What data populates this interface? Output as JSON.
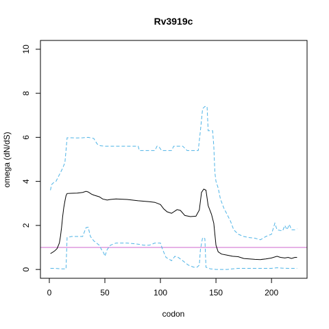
{
  "chart_data": {
    "type": "line",
    "title": "Rv3919c",
    "xlabel": "codon",
    "ylabel": "omega (dN/dS)",
    "xlim": [
      -8,
      232
    ],
    "ylim": [
      -0.4,
      10.4
    ],
    "xticks": [
      0,
      50,
      100,
      150,
      200
    ],
    "yticks": [
      0,
      2,
      4,
      6,
      8,
      10
    ],
    "grid": false,
    "reference_line": {
      "y": 1,
      "color": "#cc66cc"
    },
    "series": [
      {
        "role": "estimate",
        "color": "#000000",
        "dash": "solid",
        "points": [
          [
            1,
            0.72
          ],
          [
            3,
            0.78
          ],
          [
            5,
            0.85
          ],
          [
            7,
            0.95
          ],
          [
            9,
            1.2
          ],
          [
            10,
            1.5
          ],
          [
            11,
            1.9
          ],
          [
            12,
            2.4
          ],
          [
            13,
            2.8
          ],
          [
            14,
            3.1
          ],
          [
            15,
            3.35
          ],
          [
            16,
            3.45
          ],
          [
            20,
            3.46
          ],
          [
            25,
            3.47
          ],
          [
            30,
            3.5
          ],
          [
            33,
            3.55
          ],
          [
            35,
            3.52
          ],
          [
            38,
            3.42
          ],
          [
            40,
            3.38
          ],
          [
            45,
            3.3
          ],
          [
            48,
            3.2
          ],
          [
            52,
            3.15
          ],
          [
            55,
            3.18
          ],
          [
            60,
            3.2
          ],
          [
            70,
            3.18
          ],
          [
            80,
            3.12
          ],
          [
            90,
            3.08
          ],
          [
            95,
            3.05
          ],
          [
            100,
            2.95
          ],
          [
            103,
            2.75
          ],
          [
            106,
            2.62
          ],
          [
            110,
            2.55
          ],
          [
            115,
            2.72
          ],
          [
            118,
            2.68
          ],
          [
            122,
            2.45
          ],
          [
            127,
            2.4
          ],
          [
            132,
            2.42
          ],
          [
            135,
            2.7
          ],
          [
            137,
            3.5
          ],
          [
            139,
            3.65
          ],
          [
            141,
            3.6
          ],
          [
            143,
            2.9
          ],
          [
            146,
            2.5
          ],
          [
            148,
            2.1
          ],
          [
            150,
            1.1
          ],
          [
            152,
            0.8
          ],
          [
            155,
            0.7
          ],
          [
            160,
            0.65
          ],
          [
            165,
            0.6
          ],
          [
            170,
            0.58
          ],
          [
            175,
            0.5
          ],
          [
            180,
            0.48
          ],
          [
            185,
            0.46
          ],
          [
            190,
            0.45
          ],
          [
            195,
            0.48
          ],
          [
            200,
            0.52
          ],
          [
            205,
            0.6
          ],
          [
            208,
            0.55
          ],
          [
            212,
            0.52
          ],
          [
            215,
            0.55
          ],
          [
            218,
            0.5
          ],
          [
            221,
            0.55
          ],
          [
            223,
            0.55
          ]
        ]
      },
      {
        "role": "upper",
        "color": "#4db3e6",
        "dash": "dashed",
        "points": [
          [
            1,
            3.6
          ],
          [
            2,
            3.85
          ],
          [
            4,
            3.95
          ],
          [
            6,
            4.0
          ],
          [
            8,
            4.2
          ],
          [
            10,
            4.4
          ],
          [
            12,
            4.6
          ],
          [
            14,
            4.85
          ],
          [
            15,
            5.4
          ],
          [
            16,
            5.98
          ],
          [
            20,
            5.98
          ],
          [
            25,
            5.97
          ],
          [
            30,
            5.98
          ],
          [
            35,
            6.0
          ],
          [
            40,
            5.95
          ],
          [
            43,
            5.7
          ],
          [
            46,
            5.62
          ],
          [
            50,
            5.6
          ],
          [
            60,
            5.6
          ],
          [
            70,
            5.6
          ],
          [
            80,
            5.6
          ],
          [
            81,
            5.4
          ],
          [
            90,
            5.4
          ],
          [
            95,
            5.4
          ],
          [
            97,
            5.6
          ],
          [
            99,
            5.55
          ],
          [
            101,
            5.4
          ],
          [
            110,
            5.4
          ],
          [
            112,
            5.6
          ],
          [
            120,
            5.6
          ],
          [
            124,
            5.4
          ],
          [
            130,
            5.4
          ],
          [
            134,
            5.4
          ],
          [
            136,
            6.3
          ],
          [
            138,
            7.3
          ],
          [
            140,
            7.4
          ],
          [
            142,
            7.4
          ],
          [
            143,
            6.3
          ],
          [
            147,
            6.3
          ],
          [
            148,
            5.6
          ],
          [
            149,
            4.4
          ],
          [
            150,
            4.0
          ],
          [
            152,
            3.7
          ],
          [
            154,
            3.2
          ],
          [
            157,
            2.8
          ],
          [
            160,
            2.5
          ],
          [
            163,
            2.2
          ],
          [
            166,
            1.8
          ],
          [
            170,
            1.6
          ],
          [
            175,
            1.5
          ],
          [
            180,
            1.45
          ],
          [
            185,
            1.42
          ],
          [
            190,
            1.35
          ],
          [
            195,
            1.5
          ],
          [
            200,
            1.6
          ],
          [
            203,
            2.1
          ],
          [
            205,
            1.8
          ],
          [
            210,
            1.75
          ],
          [
            212,
            2.0
          ],
          [
            214,
            1.8
          ],
          [
            216,
            2.05
          ],
          [
            218,
            1.8
          ],
          [
            221,
            1.8
          ],
          [
            223,
            1.85
          ]
        ]
      },
      {
        "role": "lower",
        "color": "#4db3e6",
        "dash": "dashed",
        "points": [
          [
            1,
            0.05
          ],
          [
            5,
            0.05
          ],
          [
            10,
            0.03
          ],
          [
            14,
            0.03
          ],
          [
            15,
            0.02
          ],
          [
            16,
            1.45
          ],
          [
            20,
            1.5
          ],
          [
            25,
            1.5
          ],
          [
            30,
            1.5
          ],
          [
            33,
            1.9
          ],
          [
            35,
            1.92
          ],
          [
            37,
            1.5
          ],
          [
            40,
            1.3
          ],
          [
            45,
            1.1
          ],
          [
            47,
            0.9
          ],
          [
            49,
            0.75
          ],
          [
            50,
            0.6
          ],
          [
            52,
            0.9
          ],
          [
            55,
            1.1
          ],
          [
            60,
            1.2
          ],
          [
            70,
            1.2
          ],
          [
            80,
            1.15
          ],
          [
            85,
            1.1
          ],
          [
            90,
            1.1
          ],
          [
            95,
            1.2
          ],
          [
            100,
            1.2
          ],
          [
            102,
            0.9
          ],
          [
            105,
            0.55
          ],
          [
            110,
            0.4
          ],
          [
            113,
            0.6
          ],
          [
            116,
            0.55
          ],
          [
            120,
            0.4
          ],
          [
            125,
            0.2
          ],
          [
            130,
            0.1
          ],
          [
            133,
            0.1
          ],
          [
            135,
            0.2
          ],
          [
            136,
            0.9
          ],
          [
            138,
            1.45
          ],
          [
            140,
            1.4
          ],
          [
            141,
            0.1
          ],
          [
            145,
            0.03
          ],
          [
            150,
            0.0
          ],
          [
            160,
            0.0
          ],
          [
            170,
            0.05
          ],
          [
            180,
            0.05
          ],
          [
            190,
            0.05
          ],
          [
            200,
            0.05
          ],
          [
            205,
            0.08
          ],
          [
            210,
            0.06
          ],
          [
            215,
            0.05
          ],
          [
            220,
            0.05
          ],
          [
            223,
            0.05
          ]
        ]
      }
    ]
  }
}
